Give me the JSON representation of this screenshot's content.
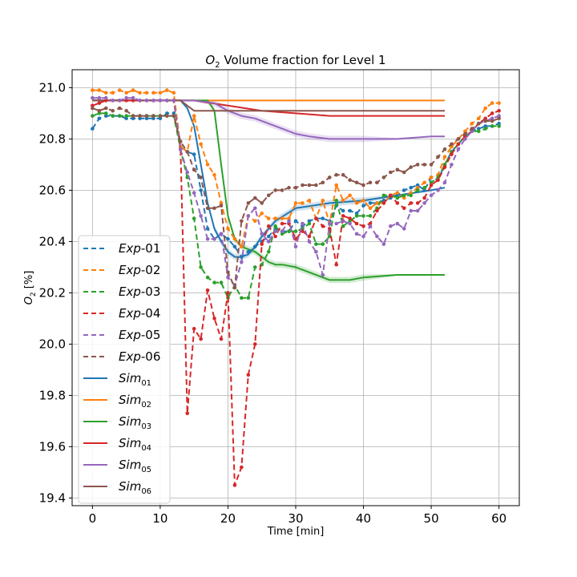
{
  "chart_data": {
    "type": "line",
    "title": "O2 Volume fraction for Level 1",
    "title_parts": {
      "prefix": "O",
      "sub": "2",
      "suffix": " Volume fraction for Level 1"
    },
    "xlabel": "Time [min]",
    "ylabel": "O2 [%]",
    "ylabel_parts": {
      "prefix": "O",
      "sub": "2",
      "suffix": " [%]"
    },
    "xlim": [
      -3,
      63
    ],
    "ylim": [
      19.37,
      21.07
    ],
    "xticks": [
      0,
      10,
      20,
      30,
      40,
      50,
      60
    ],
    "yticks": [
      19.4,
      19.6,
      19.8,
      20.0,
      20.2,
      20.4,
      20.6,
      20.8,
      21.0
    ],
    "grid": true,
    "legend_position": "lower-left",
    "colors": {
      "c1": "#1f77b4",
      "c2": "#ff7f0e",
      "c3": "#2ca02c",
      "c4": "#d62728",
      "c5": "#9467bd",
      "c6": "#8c564b"
    },
    "series": [
      {
        "name": "Exp-01",
        "label_main": "Exp",
        "label_sub": "-01",
        "style": "dashed",
        "markers": true,
        "color": "#1f77b4",
        "x": [
          0,
          1,
          2,
          3,
          4,
          5,
          6,
          7,
          8,
          9,
          10,
          11,
          12,
          13,
          14,
          15,
          16,
          17,
          18,
          19,
          20,
          21,
          22,
          23,
          24,
          25,
          26,
          27,
          28,
          29,
          30,
          31,
          32,
          33,
          34,
          35,
          36,
          37,
          38,
          39,
          40,
          41,
          42,
          43,
          44,
          45,
          46,
          47,
          48,
          49,
          50,
          51,
          52,
          53,
          54,
          55,
          56,
          57,
          58,
          59,
          60
        ],
        "y": [
          20.84,
          20.88,
          20.89,
          20.89,
          20.89,
          20.88,
          20.88,
          20.88,
          20.88,
          20.88,
          20.88,
          20.9,
          20.9,
          20.77,
          20.75,
          20.74,
          20.6,
          20.45,
          20.41,
          20.43,
          20.41,
          20.38,
          20.34,
          20.36,
          20.38,
          20.4,
          20.42,
          20.45,
          20.44,
          20.44,
          20.48,
          20.46,
          20.48,
          20.49,
          20.49,
          20.48,
          20.54,
          20.52,
          20.52,
          20.51,
          20.54,
          20.55,
          20.55,
          20.56,
          20.57,
          20.58,
          20.6,
          20.61,
          20.62,
          20.6,
          20.65,
          20.64,
          20.7,
          20.75,
          20.78,
          20.81,
          20.83,
          20.84,
          20.85,
          20.85,
          20.86
        ]
      },
      {
        "name": "Exp-02",
        "label_main": "Exp",
        "label_sub": "-02",
        "style": "dashed",
        "markers": true,
        "color": "#ff7f0e",
        "x": [
          0,
          1,
          2,
          3,
          4,
          5,
          6,
          7,
          8,
          9,
          10,
          11,
          12,
          13,
          14,
          15,
          16,
          17,
          18,
          19,
          20,
          21,
          22,
          23,
          24,
          25,
          26,
          27,
          28,
          29,
          30,
          31,
          32,
          33,
          34,
          35,
          36,
          37,
          38,
          39,
          40,
          41,
          42,
          43,
          44,
          45,
          46,
          47,
          48,
          49,
          50,
          51,
          52,
          53,
          54,
          55,
          56,
          57,
          58,
          59,
          60
        ],
        "y": [
          20.99,
          20.99,
          20.98,
          20.98,
          20.99,
          20.98,
          20.99,
          20.98,
          20.98,
          20.98,
          20.98,
          20.99,
          20.98,
          20.77,
          20.75,
          20.89,
          20.78,
          20.7,
          20.66,
          20.55,
          20.45,
          20.41,
          20.38,
          20.5,
          20.48,
          20.51,
          20.49,
          20.49,
          20.49,
          20.49,
          20.55,
          20.55,
          20.56,
          20.49,
          20.56,
          20.47,
          20.62,
          20.56,
          20.58,
          20.55,
          20.56,
          20.53,
          20.55,
          20.55,
          20.58,
          20.59,
          20.57,
          20.59,
          20.61,
          20.63,
          20.65,
          20.66,
          20.73,
          20.77,
          20.8,
          20.83,
          20.86,
          20.88,
          20.92,
          20.94,
          20.94
        ]
      },
      {
        "name": "Exp-03",
        "label_main": "Exp",
        "label_sub": "-03",
        "style": "dashed",
        "markers": true,
        "color": "#2ca02c",
        "x": [
          0,
          1,
          2,
          3,
          4,
          5,
          6,
          7,
          8,
          9,
          10,
          11,
          12,
          13,
          14,
          15,
          16,
          17,
          18,
          19,
          20,
          21,
          22,
          23,
          24,
          25,
          26,
          27,
          28,
          29,
          30,
          31,
          32,
          33,
          34,
          35,
          36,
          37,
          38,
          39,
          40,
          41,
          42,
          43,
          44,
          45,
          46,
          47,
          48,
          49,
          50,
          51,
          52,
          53,
          54,
          55,
          56,
          57,
          58,
          59,
          60
        ],
        "y": [
          20.89,
          20.9,
          20.9,
          20.89,
          20.89,
          20.89,
          20.89,
          20.89,
          20.89,
          20.89,
          20.89,
          20.89,
          20.89,
          20.76,
          20.65,
          20.49,
          20.3,
          20.26,
          20.24,
          20.24,
          20.18,
          20.23,
          20.18,
          20.18,
          20.3,
          20.31,
          20.36,
          20.46,
          20.43,
          20.44,
          20.44,
          20.45,
          20.47,
          20.39,
          20.39,
          20.42,
          20.56,
          20.46,
          20.48,
          20.5,
          20.5,
          20.5,
          20.53,
          20.58,
          20.58,
          20.57,
          20.58,
          20.58,
          20.6,
          20.61,
          20.63,
          20.65,
          20.7,
          20.75,
          20.78,
          20.81,
          20.83,
          20.83,
          20.84,
          20.85,
          20.85
        ]
      },
      {
        "name": "Exp-04",
        "label_main": "Exp",
        "label_sub": "-04",
        "style": "dashed",
        "markers": true,
        "color": "#d62728",
        "x": [
          0,
          1,
          2,
          3,
          4,
          5,
          6,
          7,
          8,
          9,
          10,
          11,
          12,
          13,
          14,
          15,
          16,
          17,
          18,
          19,
          20,
          21,
          22,
          23,
          24,
          25,
          26,
          27,
          28,
          29,
          30,
          31,
          32,
          33,
          34,
          35,
          36,
          37,
          38,
          39,
          40,
          41,
          42,
          43,
          44,
          45,
          46,
          47,
          48,
          49,
          50,
          51,
          52,
          53,
          54,
          55,
          56,
          57,
          58,
          59,
          60
        ],
        "y": [
          20.93,
          20.94,
          20.95,
          20.95,
          20.95,
          20.95,
          20.95,
          20.95,
          20.95,
          20.95,
          20.95,
          20.95,
          20.95,
          20.76,
          19.73,
          20.06,
          20.02,
          20.21,
          20.1,
          20.02,
          20.2,
          19.45,
          19.52,
          19.88,
          20.0,
          20.39,
          20.46,
          20.42,
          20.47,
          20.47,
          20.41,
          20.44,
          20.42,
          20.49,
          20.46,
          20.45,
          20.31,
          20.5,
          20.49,
          20.47,
          20.46,
          20.47,
          20.52,
          20.55,
          20.58,
          20.55,
          20.53,
          20.55,
          20.55,
          20.57,
          20.62,
          20.64,
          20.69,
          20.74,
          20.78,
          20.81,
          20.83,
          20.86,
          20.88,
          20.9,
          20.91
        ]
      },
      {
        "name": "Exp-05",
        "label_main": "Exp",
        "label_sub": "-05",
        "style": "dashed",
        "markers": true,
        "color": "#9467bd",
        "x": [
          0,
          1,
          2,
          3,
          4,
          5,
          6,
          7,
          8,
          9,
          10,
          11,
          12,
          13,
          14,
          15,
          16,
          17,
          18,
          19,
          20,
          21,
          22,
          23,
          24,
          25,
          26,
          27,
          28,
          29,
          30,
          31,
          32,
          33,
          34,
          35,
          36,
          37,
          38,
          39,
          40,
          41,
          42,
          43,
          44,
          45,
          46,
          47,
          48,
          49,
          50,
          51,
          52,
          53,
          54,
          55,
          56,
          57,
          58,
          59,
          60
        ],
        "y": [
          20.96,
          20.96,
          20.96,
          20.95,
          20.95,
          20.96,
          20.96,
          20.95,
          20.95,
          20.95,
          20.95,
          20.95,
          20.95,
          20.76,
          20.67,
          20.59,
          20.5,
          20.41,
          20.41,
          20.43,
          20.26,
          20.23,
          20.32,
          20.5,
          20.53,
          20.43,
          20.4,
          20.44,
          20.44,
          20.48,
          20.38,
          20.47,
          20.4,
          20.36,
          20.27,
          20.47,
          20.47,
          20.48,
          20.47,
          20.43,
          20.42,
          20.46,
          20.42,
          20.39,
          20.46,
          20.47,
          20.45,
          20.52,
          20.52,
          20.55,
          20.58,
          20.6,
          20.63,
          20.7,
          20.76,
          20.8,
          20.83,
          20.86,
          20.87,
          20.88,
          20.89
        ]
      },
      {
        "name": "Exp-06",
        "label_main": "Exp",
        "label_sub": "-06",
        "style": "dashed",
        "markers": true,
        "color": "#8c564b",
        "x": [
          0,
          1,
          2,
          3,
          4,
          5,
          6,
          7,
          8,
          9,
          10,
          11,
          12,
          13,
          14,
          15,
          16,
          17,
          18,
          19,
          20,
          21,
          22,
          23,
          24,
          25,
          26,
          27,
          28,
          29,
          30,
          31,
          32,
          33,
          34,
          35,
          36,
          37,
          38,
          39,
          40,
          41,
          42,
          43,
          44,
          45,
          46,
          47,
          48,
          49,
          50,
          51,
          52,
          53,
          54,
          55,
          56,
          57,
          58,
          59,
          60
        ],
        "y": [
          20.92,
          20.91,
          20.92,
          20.91,
          20.92,
          20.91,
          20.89,
          20.89,
          20.89,
          20.89,
          20.89,
          20.89,
          20.89,
          20.79,
          20.75,
          20.68,
          20.65,
          20.53,
          20.53,
          20.54,
          20.28,
          20.22,
          20.48,
          20.55,
          20.57,
          20.55,
          20.58,
          20.6,
          20.6,
          20.61,
          20.61,
          20.62,
          20.62,
          20.62,
          20.63,
          20.65,
          20.66,
          20.66,
          20.64,
          20.63,
          20.62,
          20.63,
          20.63,
          20.65,
          20.67,
          20.68,
          20.67,
          20.69,
          20.7,
          20.7,
          20.7,
          20.73,
          20.76,
          20.78,
          20.8,
          20.82,
          20.84,
          20.86,
          20.87,
          20.87,
          20.88
        ]
      },
      {
        "name": "Sim01",
        "label_main": "Sim",
        "label_sub": "01",
        "style": "solid",
        "markers": false,
        "color": "#1f77b4",
        "x": [
          0,
          5,
          10,
          12,
          13,
          14,
          15,
          16,
          17,
          18,
          19,
          20,
          21,
          22,
          23,
          24,
          25,
          27,
          30,
          35,
          40,
          45,
          50,
          52
        ],
        "y": [
          20.95,
          20.95,
          20.95,
          20.95,
          20.95,
          20.92,
          20.85,
          20.7,
          20.55,
          20.45,
          20.4,
          20.36,
          20.34,
          20.34,
          20.35,
          20.38,
          20.42,
          20.48,
          20.53,
          20.55,
          20.56,
          20.58,
          20.6,
          20.61
        ]
      },
      {
        "name": "Sim02",
        "label_main": "Sim",
        "label_sub": "02",
        "style": "solid",
        "markers": false,
        "color": "#ff7f0e",
        "x": [
          0,
          10,
          20,
          30,
          40,
          52
        ],
        "y": [
          20.95,
          20.95,
          20.95,
          20.95,
          20.95,
          20.95
        ]
      },
      {
        "name": "Sim03",
        "label_main": "Sim",
        "label_sub": "03",
        "style": "solid",
        "markers": false,
        "color": "#2ca02c",
        "x": [
          0,
          5,
          10,
          15,
          17,
          18,
          19,
          20,
          21,
          22,
          23,
          24,
          25,
          26,
          27,
          28,
          30,
          32,
          35,
          38,
          40,
          45,
          50,
          52
        ],
        "y": [
          20.95,
          20.95,
          20.95,
          20.95,
          20.95,
          20.91,
          20.7,
          20.5,
          20.41,
          20.38,
          20.37,
          20.36,
          20.34,
          20.32,
          20.31,
          20.31,
          20.3,
          20.28,
          20.25,
          20.25,
          20.26,
          20.27,
          20.27,
          20.27
        ]
      },
      {
        "name": "Sim04",
        "label_main": "Sim",
        "label_sub": "04",
        "style": "solid",
        "markers": false,
        "color": "#d62728",
        "x": [
          0,
          5,
          10,
          15,
          20,
          25,
          30,
          35,
          40,
          45,
          50,
          52
        ],
        "y": [
          20.95,
          20.95,
          20.95,
          20.95,
          20.93,
          20.91,
          20.9,
          20.89,
          20.89,
          20.89,
          20.89,
          20.89
        ]
      },
      {
        "name": "Sim05",
        "label_main": "Sim",
        "label_sub": "05",
        "style": "solid",
        "markers": false,
        "color": "#9467bd",
        "x": [
          0,
          5,
          10,
          15,
          18,
          20,
          22,
          24,
          26,
          28,
          30,
          32,
          35,
          40,
          45,
          50,
          52
        ],
        "y": [
          20.95,
          20.95,
          20.95,
          20.95,
          20.94,
          20.91,
          20.89,
          20.88,
          20.86,
          20.84,
          20.82,
          20.81,
          20.8,
          20.8,
          20.8,
          20.81,
          20.81
        ]
      },
      {
        "name": "Sim06",
        "label_main": "Sim",
        "label_sub": "06",
        "style": "solid",
        "markers": false,
        "color": "#8c564b",
        "x": [
          0,
          5,
          10,
          13,
          14,
          15,
          16,
          17,
          18,
          20,
          25,
          30,
          40,
          52
        ],
        "y": [
          20.95,
          20.95,
          20.95,
          20.95,
          20.93,
          20.91,
          20.91,
          20.91,
          20.91,
          20.91,
          20.91,
          20.91,
          20.91,
          20.91
        ]
      }
    ]
  }
}
